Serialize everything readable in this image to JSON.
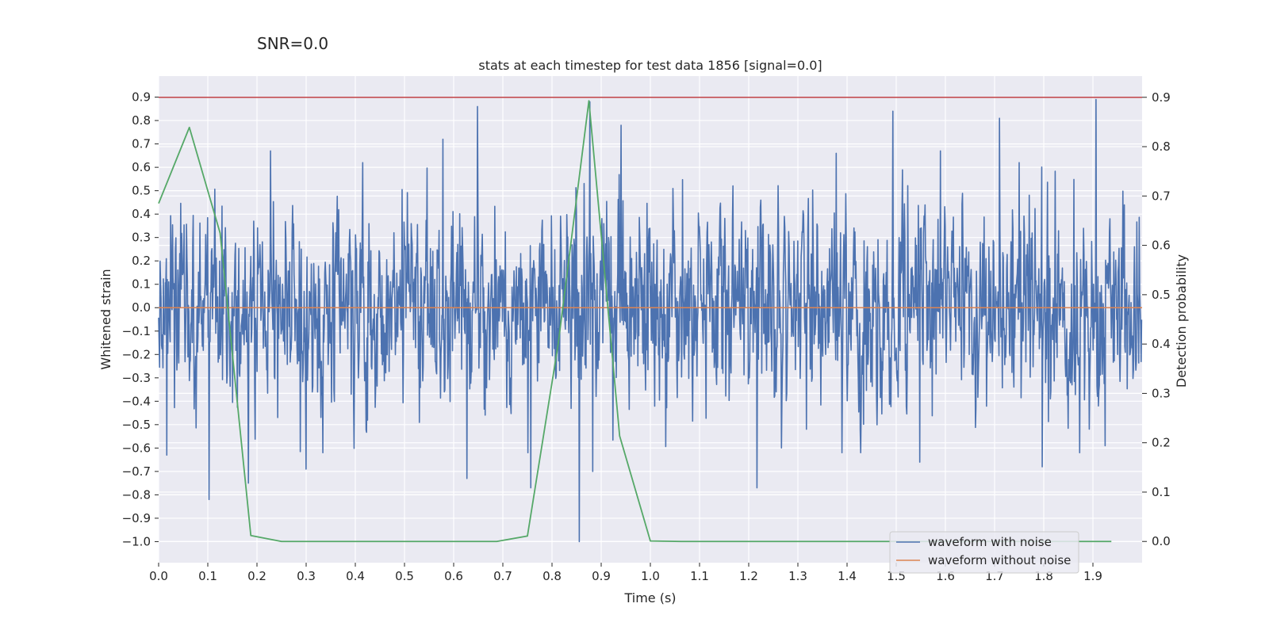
{
  "chart_data": {
    "type": "line",
    "suptitle": "SNR=0.0",
    "title": "stats at each timestep for test data 1856 [signal=0.0]",
    "xlabel": "Time (s)",
    "ylabel": "Whitened strain",
    "y2label": "Detection probability",
    "xlim": [
      0.0,
      2.0
    ],
    "ylim": [
      -1.09,
      0.99
    ],
    "y2lim": [
      -0.043,
      0.943
    ],
    "xticks": [
      0.0,
      0.1,
      0.2,
      0.3,
      0.4,
      0.5,
      0.6,
      0.7,
      0.8,
      0.9,
      1.0,
      1.1,
      1.2,
      1.3,
      1.4,
      1.5,
      1.6,
      1.7,
      1.8,
      1.9
    ],
    "xtick_labels": [
      "0.0",
      "0.1",
      "0.2",
      "0.3",
      "0.4",
      "0.5",
      "0.6",
      "0.7",
      "0.8",
      "0.9",
      "1.0",
      "1.1",
      "1.2",
      "1.3",
      "1.4",
      "1.5",
      "1.6",
      "1.7",
      "1.8",
      "1.9"
    ],
    "yticks": [
      0.9,
      0.8,
      0.7,
      0.6,
      0.5,
      0.4,
      0.3,
      0.2,
      0.1,
      0.0,
      -0.1,
      -0.2,
      -0.3,
      -0.4,
      -0.5,
      -0.6,
      -0.7,
      -0.8,
      -0.9,
      -1.0
    ],
    "ytick_labels": [
      "0.9",
      "0.8",
      "0.7",
      "0.6",
      "0.5",
      "0.4",
      "0.3",
      "0.2",
      "0.1",
      "0.0",
      "−0.1",
      "−0.2",
      "−0.3",
      "−0.4",
      "−0.5",
      "−0.6",
      "−0.7",
      "−0.8",
      "−0.9",
      "−1.0"
    ],
    "y2ticks": [
      0.9,
      0.8,
      0.7,
      0.6,
      0.5,
      0.4,
      0.3,
      0.2,
      0.1,
      0.0
    ],
    "y2tick_labels": [
      "0.9",
      "0.8",
      "0.7",
      "0.6",
      "0.5",
      "0.4",
      "0.3",
      "0.2",
      "0.1",
      "0.0"
    ],
    "threshold": {
      "value": 0.9,
      "axis": "right",
      "color": "#c44e52"
    },
    "series": [
      {
        "name": "waveform with noise",
        "color": "#4c72b0",
        "axis": "left",
        "sampling": {
          "t_start": 0.0,
          "t_end": 2.0,
          "n_samples": 2048,
          "seed": 1856,
          "std": 0.2
        },
        "spikes": [
          {
            "t": 0.103,
            "v": -0.82
          },
          {
            "t": 0.017,
            "v": -0.63
          },
          {
            "t": 0.183,
            "v": -0.75
          },
          {
            "t": 0.228,
            "v": 0.67
          },
          {
            "t": 0.3,
            "v": -0.69
          },
          {
            "t": 0.578,
            "v": 0.72
          },
          {
            "t": 0.627,
            "v": -0.73
          },
          {
            "t": 0.648,
            "v": 0.86
          },
          {
            "t": 0.757,
            "v": -0.77
          },
          {
            "t": 0.855,
            "v": -1.0
          },
          {
            "t": 0.877,
            "v": 0.88
          },
          {
            "t": 0.883,
            "v": -0.7
          },
          {
            "t": 0.94,
            "v": 0.78
          },
          {
            "t": 1.217,
            "v": -0.77
          },
          {
            "t": 1.493,
            "v": 0.84
          },
          {
            "t": 1.548,
            "v": -0.66
          },
          {
            "t": 1.71,
            "v": 0.81
          },
          {
            "t": 1.797,
            "v": -0.68
          },
          {
            "t": 1.906,
            "v": 0.89
          },
          {
            "t": 1.925,
            "v": -0.59
          },
          {
            "t": 1.59,
            "v": 0.67
          },
          {
            "t": 1.378,
            "v": 0.66
          }
        ]
      },
      {
        "name": "waveform without noise",
        "color": "#dd8452",
        "axis": "left",
        "x": [
          0.0,
          2.0
        ],
        "y": [
          0.0,
          0.0
        ]
      },
      {
        "name": "detection probability",
        "color": "#55a868",
        "axis": "right",
        "x": [
          0.0,
          0.0625,
          0.125,
          0.1875,
          0.25,
          0.3125,
          0.375,
          0.4375,
          0.5,
          0.5625,
          0.625,
          0.6875,
          0.75,
          0.8125,
          0.875,
          0.9375,
          1.0,
          1.0625,
          1.125,
          1.1875,
          1.25,
          1.3125,
          1.375,
          1.4375,
          1.5,
          1.5625,
          1.625,
          1.6875,
          1.75,
          1.8125,
          1.875,
          1.9375
        ],
        "y": [
          0.685,
          0.839,
          0.625,
          0.012,
          0.0,
          0.0,
          0.0,
          0.0,
          0.0,
          0.0,
          0.0,
          0.0,
          0.011,
          0.4,
          0.893,
          0.214,
          0.001,
          0.0,
          0.0,
          0.0,
          0.0,
          0.0,
          0.0,
          0.0,
          0.0,
          0.0,
          0.0,
          0.0,
          0.0,
          0.0,
          0.0,
          0.0
        ]
      }
    ],
    "legend": {
      "position": "lower-right",
      "entries": [
        {
          "label": "waveform with noise",
          "color": "#4c72b0"
        },
        {
          "label": "waveform without noise",
          "color": "#dd8452"
        }
      ]
    },
    "style": {
      "background": "#eaeaf2",
      "grid_color": "#ffffff"
    }
  }
}
